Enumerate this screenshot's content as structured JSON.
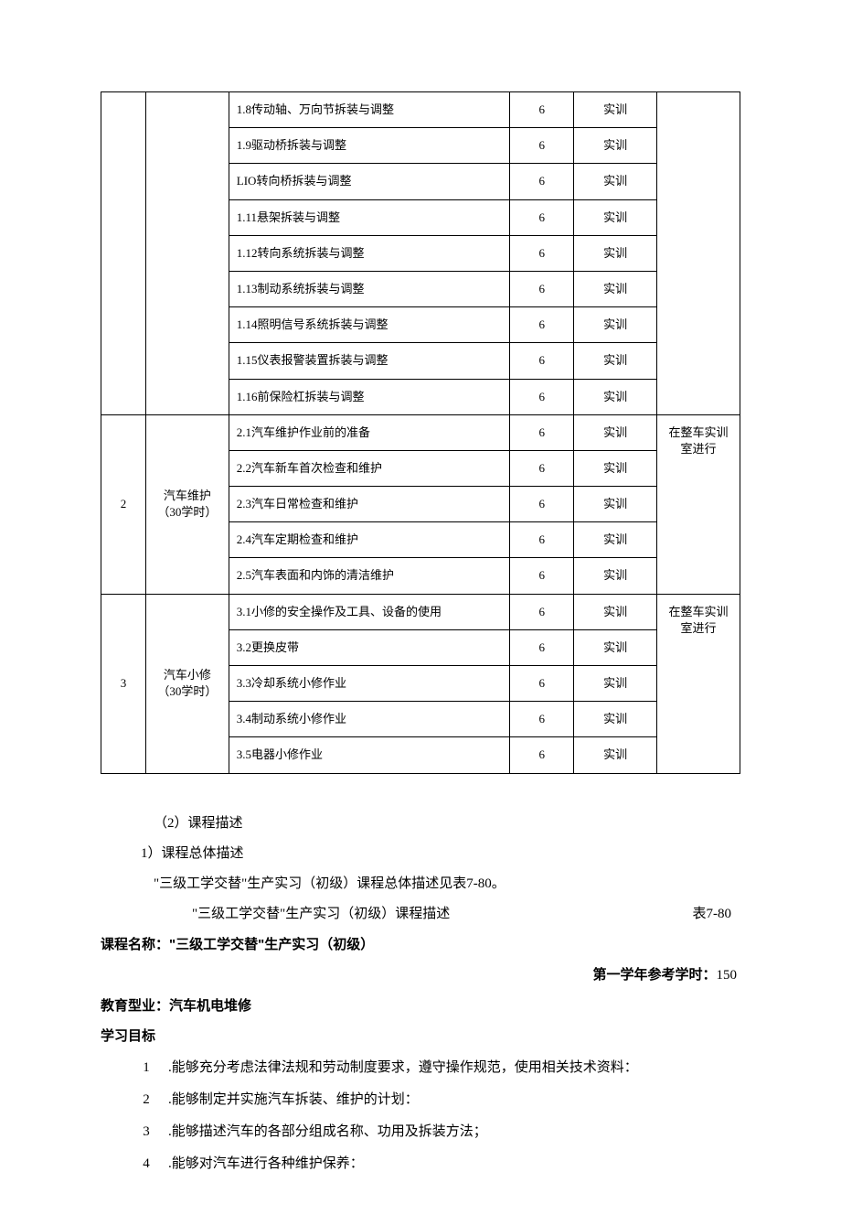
{
  "table": {
    "columns_width_class": [
      "col0",
      "col1",
      "col2",
      "col3",
      "col4",
      "col5"
    ],
    "group1": {
      "rows": [
        {
          "item": "1.8传动轴、万向节拆装与调整",
          "hours": "6",
          "type": "实训"
        },
        {
          "item": "1.9驱动桥拆装与调整",
          "hours": "6",
          "type": "实训"
        },
        {
          "item": "LIO转向桥拆装与调整",
          "hours": "6",
          "type": "实训"
        },
        {
          "item": "1.11悬架拆装与调整",
          "hours": "6",
          "type": "实训"
        },
        {
          "item": "1.12转向系统拆装与调整",
          "hours": "6",
          "type": "实训"
        },
        {
          "item": "1.13制动系统拆装与调整",
          "hours": "6",
          "type": "实训"
        },
        {
          "item": "1.14照明信号系统拆装与调整",
          "hours": "6",
          "type": "实训"
        },
        {
          "item": "1.15仪表报警装置拆装与调整",
          "hours": "6",
          "type": "实训"
        },
        {
          "item": "1.16前保险杠拆装与调整",
          "hours": "6",
          "type": "实训"
        }
      ]
    },
    "group2": {
      "index": "2",
      "title_line1": "汽车维护",
      "title_line2": "（30学时）",
      "note_line1": "在整车实训",
      "note_line2": "室进行",
      "rows": [
        {
          "item": "2.1汽车维护作业前的准备",
          "hours": "6",
          "type": "实训"
        },
        {
          "item": "2.2汽车新车首次检查和维护",
          "hours": "6",
          "type": "实训"
        },
        {
          "item": "2.3汽车日常检查和维护",
          "hours": "6",
          "type": "实训"
        },
        {
          "item": "2.4汽车定期检查和维护",
          "hours": "6",
          "type": "实训"
        },
        {
          "item": "2.5汽车表面和内饰的清洁维护",
          "hours": "6",
          "type": "实训"
        }
      ]
    },
    "group3": {
      "index": "3",
      "title_line1": "汽车小修",
      "title_line2": "（30学时）",
      "note_line1": "在整车实训",
      "note_line2": "室进行",
      "rows": [
        {
          "item": "3.1小修的安全操作及工具、设备的使用",
          "hours": "6",
          "type": "实训"
        },
        {
          "item": "3.2更换皮带",
          "hours": "6",
          "type": "实训"
        },
        {
          "item": "3.3冷却系统小修作业",
          "hours": "6",
          "type": "实训"
        },
        {
          "item": "3.4制动系统小修作业",
          "hours": "6",
          "type": "实训"
        },
        {
          "item": "3.5电器小修作业",
          "hours": "6",
          "type": "实训"
        }
      ]
    }
  },
  "text": {
    "h2": "（2）课程描述",
    "h3": "1）课程总体描述",
    "p1": "\"三级工学交替\"生产实习（初级）课程总体描述见表7-80。",
    "caption": "\"三级工学交替\"生产实习（初级）课程描述",
    "table_no": "表7-80",
    "course_name_label": "课程名称：",
    "course_name_value": "\"三级工学交替\"生产实习（初级）",
    "ref_hours_label": "第一学年参考学时：",
    "ref_hours_value": "150",
    "edu_type_label": "教育型业：",
    "edu_type_value": "汽车机电堆修",
    "objectives_label": "学习目标",
    "objectives": [
      {
        "n": "1",
        "t": ".能够充分考虑法律法规和劳动制度要求，遵守操作规范，使用相关技术资料："
      },
      {
        "n": "2",
        "t": ".能够制定并实施汽车拆装、维护的计划："
      },
      {
        "n": "3",
        "t": ".能够描述汽车的各部分组成名称、功用及拆装方法；"
      },
      {
        "n": "4",
        "t": ".能够对汽车进行各种维护保养："
      }
    ]
  },
  "style": {
    "text_color": "#000000",
    "border_color": "#000000",
    "background_color": "#ffffff",
    "body_fontsize": 14,
    "table_fontsize": 13
  }
}
